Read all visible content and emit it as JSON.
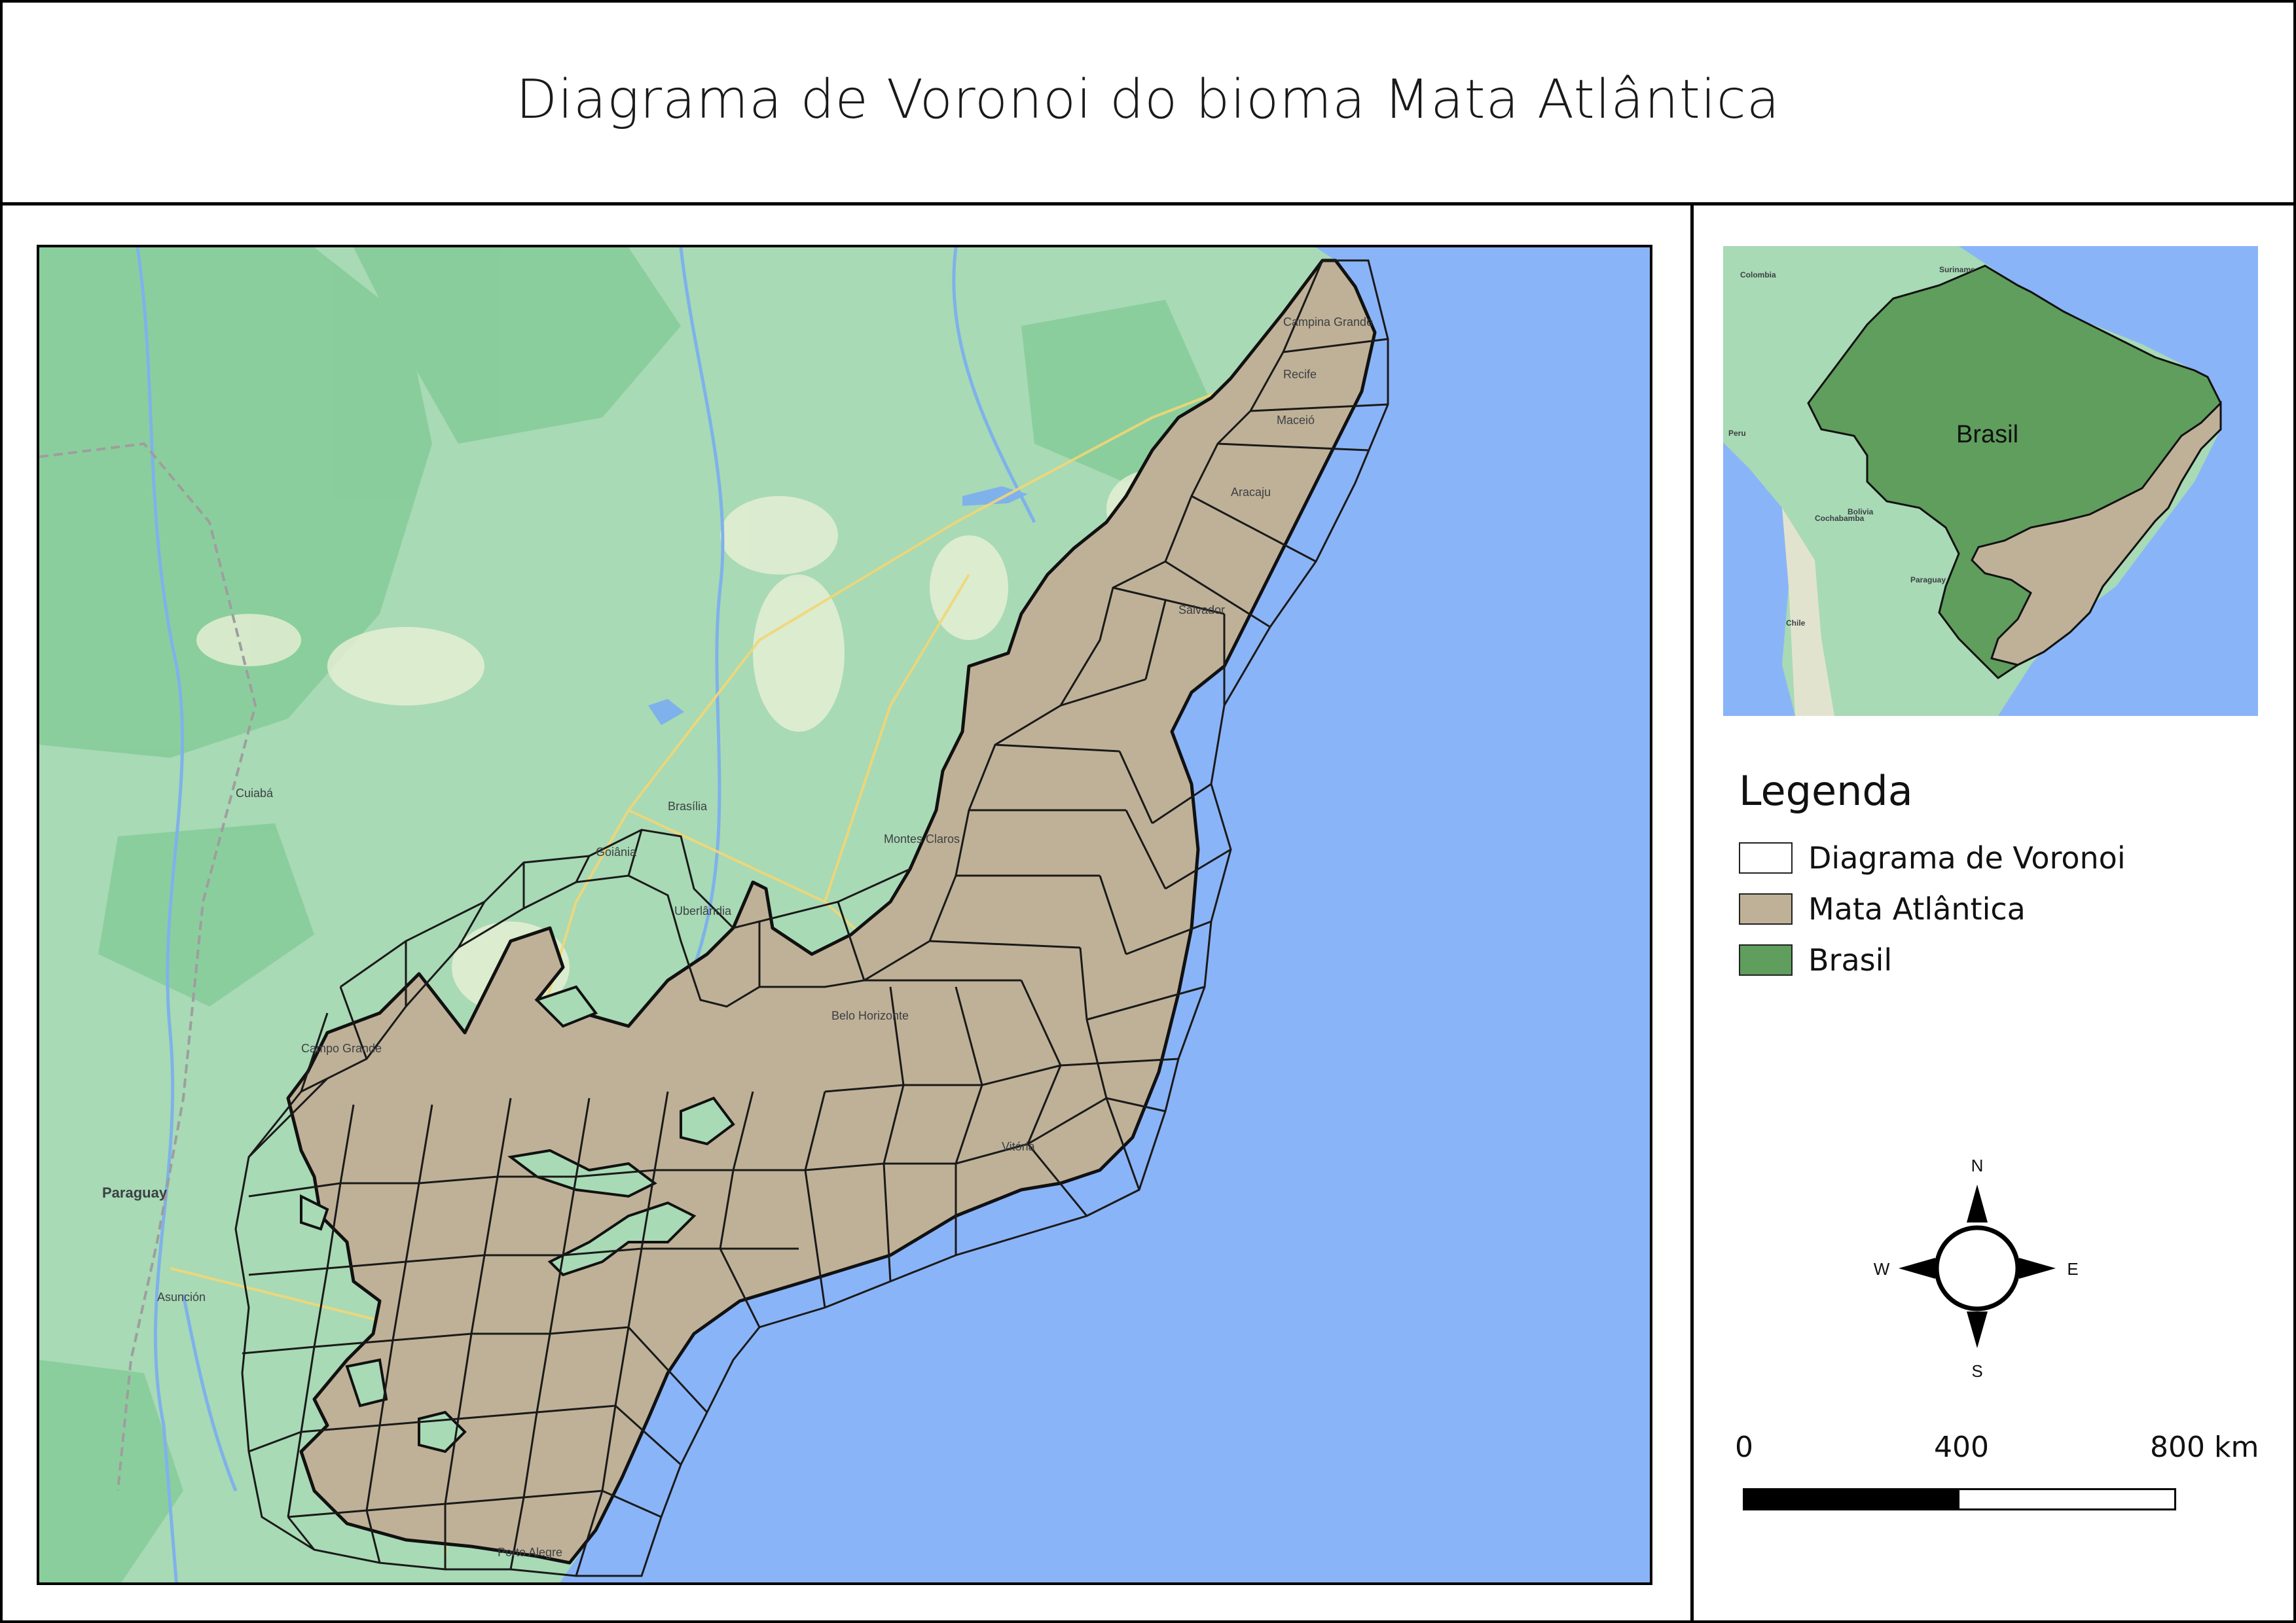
{
  "title": "Diagrama de Voronoi do bioma Mata Atlântica",
  "basemap_labels": {
    "paraguay": "Paraguay",
    "brasilia": "Brasília",
    "goiania": "Goiânia",
    "campo_grande": "Campo Grande",
    "assuncao": "Asunción",
    "porto_alegre": "Porto Alegre",
    "belo_horizonte": "Belo Horizonte",
    "salvador": "Salvador",
    "recife": "Recife",
    "maceio": "Maceió",
    "campina_grande": "Campina Grande",
    "montes_claros": "Montes Claros",
    "cuiaba": "Cuiabá",
    "uberlandia": "Uberlândia",
    "aracaju": "Aracaju",
    "vitoria": "Vitória"
  },
  "inset": {
    "label_brasil": "Brasil",
    "labels": {
      "colombia": "Colombia",
      "peru": "Peru",
      "bolivia": "Bolivia",
      "chile": "Chile",
      "paraguay": "Paraguay",
      "cochabamba": "Cochabamba",
      "suriname": "Suriname"
    }
  },
  "legend": {
    "title": "Legenda",
    "items": [
      {
        "label": "Diagrama de Voronoi",
        "color": "#ffffff"
      },
      {
        "label": "Mata Atlântica",
        "color": "#bfb197"
      },
      {
        "label": "Brasil",
        "color": "#5f9e5c"
      }
    ]
  },
  "compass": {
    "n": "N",
    "s": "S",
    "e": "E",
    "w": "W"
  },
  "scale_bar": {
    "labels": [
      "0",
      "400",
      "800 km"
    ]
  },
  "colors": {
    "ocean": "#8ab4f8",
    "land_green": "#a8dab5",
    "forest": "#81c995",
    "mata_atlantica": "#bfb197",
    "brasil": "#5f9e5c",
    "voronoi_stroke": "#1a1a1a"
  }
}
